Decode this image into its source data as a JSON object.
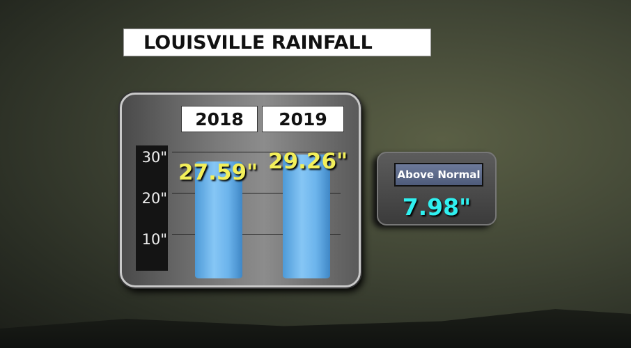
{
  "chart_data": {
    "type": "bar",
    "title": "LOUISVILLE RAINFALL",
    "categories": [
      "2018",
      "2019"
    ],
    "values": [
      27.59,
      29.26
    ],
    "value_labels": [
      "27.59\"",
      "29.26\""
    ],
    "yticks": [
      {
        "value": 10,
        "label": "10\""
      },
      {
        "value": 20,
        "label": "20\""
      },
      {
        "value": 30,
        "label": "30\""
      }
    ],
    "ylim": [
      0,
      30
    ],
    "xlabel": "",
    "ylabel": "",
    "grid": true
  },
  "callout": {
    "label": "Above Normal",
    "value": "7.98\""
  },
  "colors": {
    "bar": "#6cb4ec",
    "value_text": "#f3ef5a",
    "callout_value": "#2ff0f0"
  }
}
